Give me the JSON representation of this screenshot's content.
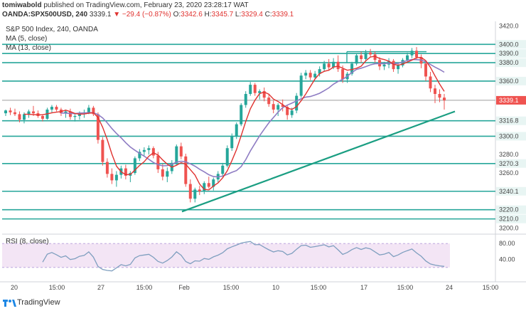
{
  "header": {
    "author": "tomiwabold",
    "published_text": "published on TradingView.com, February 23, 2020 23:28:17 WAT",
    "symbol": "OANDA:SPX500USD, 240",
    "last": "3339.1",
    "change": "▼ −29.4 (−0.87%)",
    "o_label": "O:",
    "o_value": "3342.6",
    "h_label": "H:",
    "h_value": "3345.7",
    "l_label": "L:",
    "l_value": "3329.4",
    "c_label": "C:",
    "c_value": "3339.1"
  },
  "legend": {
    "title": "S&P 500 Index, 240, OANDA",
    "ma5": "MA (5, close)",
    "ma13": "MA (13, close)",
    "rsi": "RSI (8, close)"
  },
  "footer": {
    "brand": "TradingView"
  },
  "colors": {
    "up": "#26a69a",
    "down": "#ef5350",
    "ma5": "#e0322f",
    "ma13": "#8e7cc3",
    "level": "#26a69a",
    "trend": "#1a9e82",
    "rsi_line": "#7f9fbf",
    "rsi_fill": "#f3e5f5",
    "last_price_bg": "#ef5350"
  },
  "chart_data": [
    {
      "type": "candlestick",
      "symbol": "SPX500USD",
      "timeframe": "240",
      "ylim": [
        3195,
        3425
      ],
      "y_ticks": [
        3420.0,
        3400.0,
        3390.0,
        3380.0,
        3360.0,
        3339.1,
        3316.8,
        3300.0,
        3280.0,
        3270.3,
        3260.0,
        3240.1,
        3220.0,
        3210.0,
        3200.0
      ],
      "highlighted_levels": [
        3400.0,
        3390.0,
        3380.0,
        3360.0,
        3316.8,
        3300.0,
        3270.3,
        3240.1,
        3220.0,
        3210.0
      ],
      "last_price": 3339.1,
      "x_ticks": [
        "20",
        "15:00",
        "27",
        "15:00",
        "Feb",
        "15:00",
        "10",
        "15:00",
        "17",
        "15:00",
        "24",
        "15:00"
      ],
      "ohlc": [
        [
          3325,
          3329,
          3322,
          3328
        ],
        [
          3328,
          3331,
          3323,
          3326
        ],
        [
          3326,
          3330,
          3322,
          3324
        ],
        [
          3324,
          3327,
          3315,
          3318
        ],
        [
          3318,
          3326,
          3314,
          3324
        ],
        [
          3324,
          3329,
          3320,
          3327
        ],
        [
          3327,
          3333,
          3322,
          3325
        ],
        [
          3325,
          3328,
          3320,
          3322
        ],
        [
          3322,
          3324,
          3316,
          3319
        ],
        [
          3319,
          3331,
          3318,
          3329
        ],
        [
          3329,
          3334,
          3326,
          3332
        ],
        [
          3332,
          3334,
          3327,
          3329
        ],
        [
          3329,
          3331,
          3322,
          3325
        ],
        [
          3325,
          3329,
          3320,
          3327
        ],
        [
          3327,
          3330,
          3318,
          3321
        ],
        [
          3321,
          3325,
          3316,
          3322
        ],
        [
          3322,
          3327,
          3318,
          3325
        ],
        [
          3325,
          3329,
          3320,
          3326
        ],
        [
          3326,
          3334,
          3324,
          3331
        ],
        [
          3331,
          3333,
          3322,
          3324
        ],
        [
          3324,
          3326,
          3292,
          3296
        ],
        [
          3296,
          3299,
          3268,
          3272
        ],
        [
          3272,
          3276,
          3255,
          3259
        ],
        [
          3259,
          3265,
          3248,
          3252
        ],
        [
          3252,
          3262,
          3245,
          3258
        ],
        [
          3258,
          3268,
          3254,
          3265
        ],
        [
          3265,
          3269,
          3253,
          3257
        ],
        [
          3257,
          3262,
          3250,
          3260
        ],
        [
          3260,
          3278,
          3258,
          3276
        ],
        [
          3276,
          3286,
          3273,
          3283
        ],
        [
          3283,
          3288,
          3279,
          3285
        ],
        [
          3285,
          3290,
          3280,
          3287
        ],
        [
          3287,
          3289,
          3276,
          3279
        ],
        [
          3279,
          3283,
          3260,
          3264
        ],
        [
          3264,
          3270,
          3252,
          3256
        ],
        [
          3256,
          3266,
          3250,
          3262
        ],
        [
          3262,
          3274,
          3259,
          3271
        ],
        [
          3271,
          3291,
          3269,
          3289
        ],
        [
          3289,
          3293,
          3275,
          3278
        ],
        [
          3278,
          3281,
          3245,
          3248
        ],
        [
          3248,
          3253,
          3228,
          3232
        ],
        [
          3232,
          3244,
          3228,
          3242
        ],
        [
          3242,
          3246,
          3236,
          3240
        ],
        [
          3240,
          3251,
          3237,
          3249
        ],
        [
          3249,
          3256,
          3243,
          3245
        ],
        [
          3245,
          3255,
          3241,
          3253
        ],
        [
          3253,
          3262,
          3250,
          3259
        ],
        [
          3259,
          3271,
          3256,
          3268
        ],
        [
          3268,
          3290,
          3266,
          3287
        ],
        [
          3287,
          3303,
          3284,
          3300
        ],
        [
          3300,
          3315,
          3297,
          3313
        ],
        [
          3313,
          3336,
          3311,
          3334
        ],
        [
          3334,
          3349,
          3331,
          3346
        ],
        [
          3346,
          3359,
          3344,
          3356
        ],
        [
          3356,
          3358,
          3344,
          3347
        ],
        [
          3347,
          3351,
          3340,
          3349
        ],
        [
          3349,
          3353,
          3338,
          3342
        ],
        [
          3342,
          3346,
          3332,
          3335
        ],
        [
          3335,
          3339,
          3325,
          3329
        ],
        [
          3329,
          3336,
          3322,
          3334
        ],
        [
          3334,
          3340,
          3327,
          3332
        ],
        [
          3332,
          3334,
          3318,
          3323
        ],
        [
          3323,
          3331,
          3320,
          3328
        ],
        [
          3328,
          3347,
          3325,
          3344
        ],
        [
          3344,
          3369,
          3342,
          3366
        ],
        [
          3366,
          3372,
          3362,
          3369
        ],
        [
          3369,
          3372,
          3361,
          3364
        ],
        [
          3364,
          3371,
          3362,
          3368
        ],
        [
          3368,
          3376,
          3365,
          3373
        ],
        [
          3373,
          3382,
          3370,
          3379
        ],
        [
          3379,
          3384,
          3372,
          3375
        ],
        [
          3375,
          3385,
          3373,
          3381
        ],
        [
          3381,
          3388,
          3370,
          3373
        ],
        [
          3373,
          3377,
          3358,
          3362
        ],
        [
          3362,
          3370,
          3358,
          3368
        ],
        [
          3368,
          3381,
          3366,
          3379
        ],
        [
          3379,
          3390,
          3377,
          3388
        ],
        [
          3388,
          3392,
          3380,
          3384
        ],
        [
          3384,
          3394,
          3382,
          3391
        ],
        [
          3391,
          3395,
          3386,
          3389
        ],
        [
          3389,
          3392,
          3380,
          3383
        ],
        [
          3383,
          3386,
          3372,
          3376
        ],
        [
          3376,
          3381,
          3372,
          3378
        ],
        [
          3378,
          3385,
          3374,
          3382
        ],
        [
          3382,
          3384,
          3370,
          3373
        ],
        [
          3373,
          3379,
          3368,
          3377
        ],
        [
          3377,
          3385,
          3375,
          3383
        ],
        [
          3383,
          3391,
          3380,
          3388
        ],
        [
          3388,
          3396,
          3385,
          3393
        ],
        [
          3393,
          3397,
          3384,
          3386
        ],
        [
          3386,
          3389,
          3374,
          3379
        ],
        [
          3379,
          3381,
          3360,
          3365
        ],
        [
          3365,
          3370,
          3348,
          3352
        ],
        [
          3352,
          3356,
          3336,
          3346
        ],
        [
          3346,
          3351,
          3337,
          3342
        ],
        [
          3342,
          3346,
          3329,
          3339
        ]
      ],
      "ma5_color": "#e0322f",
      "ma13_color": "#8e7cc3",
      "trendline": {
        "from": [
          3218,
          "Jan 31"
        ],
        "to": [
          3327,
          "Feb 24"
        ]
      }
    },
    {
      "type": "line",
      "name": "RSI (8, close)",
      "ylim": [
        0,
        100
      ],
      "y_ticks": [
        80.0,
        40.0
      ],
      "band": [
        20,
        80
      ]
    }
  ]
}
